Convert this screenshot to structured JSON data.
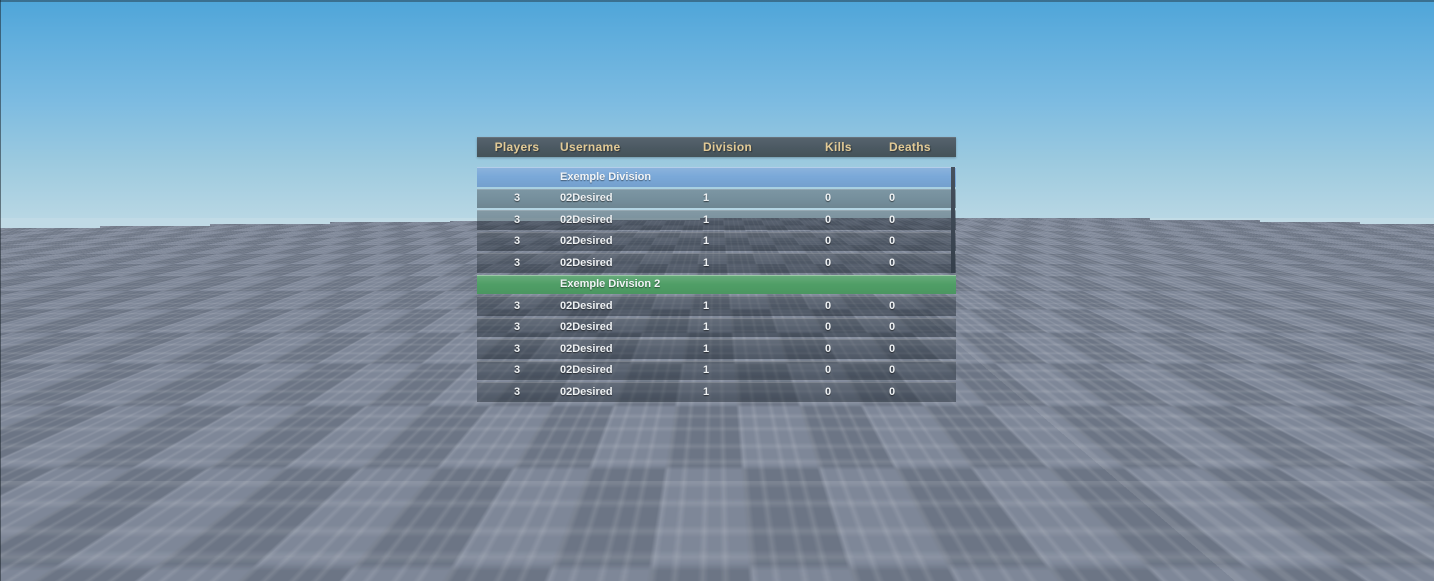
{
  "scene": {
    "sky_top_color": "#4ea5d9",
    "sky_horizon_color": "#c2dce6",
    "ground_tile_light": "#7e8798",
    "ground_tile_dark": "#6c7585"
  },
  "leaderboard": {
    "header_text_color": "#e2ca96",
    "columns": [
      {
        "key": "players",
        "label": "Players"
      },
      {
        "key": "username",
        "label": "Username"
      },
      {
        "key": "division",
        "label": "Division"
      },
      {
        "key": "kills",
        "label": "Kills"
      },
      {
        "key": "deaths",
        "label": "Deaths"
      }
    ],
    "sections": [
      {
        "title": "Exemple Division",
        "color": "#7aa8d8",
        "rows": [
          {
            "players": "3",
            "username": "02Desired",
            "division": "1",
            "kills": "0",
            "deaths": "0"
          },
          {
            "players": "3",
            "username": "02Desired",
            "division": "1",
            "kills": "0",
            "deaths": "0"
          },
          {
            "players": "3",
            "username": "02Desired",
            "division": "1",
            "kills": "0",
            "deaths": "0"
          },
          {
            "players": "3",
            "username": "02Desired",
            "division": "1",
            "kills": "0",
            "deaths": "0"
          }
        ]
      },
      {
        "title": "Exemple Division 2",
        "color": "#4f9e66",
        "rows": [
          {
            "players": "3",
            "username": "02Desired",
            "division": "1",
            "kills": "0",
            "deaths": "0"
          },
          {
            "players": "3",
            "username": "02Desired",
            "division": "1",
            "kills": "0",
            "deaths": "0"
          },
          {
            "players": "3",
            "username": "02Desired",
            "division": "1",
            "kills": "0",
            "deaths": "0"
          },
          {
            "players": "3",
            "username": "02Desired",
            "division": "1",
            "kills": "0",
            "deaths": "0"
          },
          {
            "players": "3",
            "username": "02Desired",
            "division": "1",
            "kills": "0",
            "deaths": "0"
          }
        ]
      }
    ]
  }
}
